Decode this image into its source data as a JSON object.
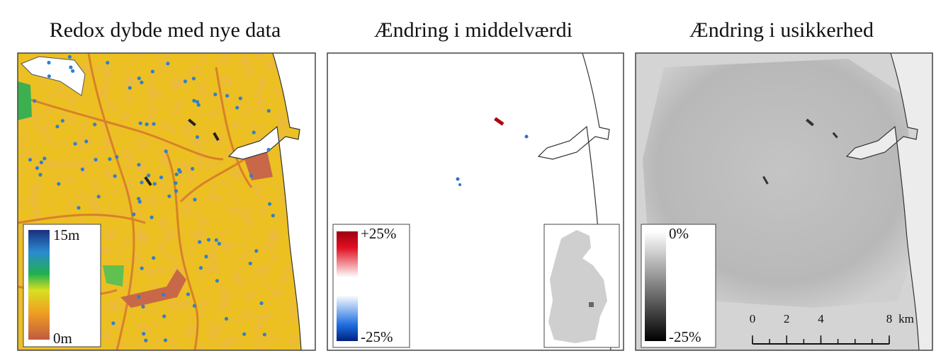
{
  "panels": [
    {
      "title": "Redox dybde med nye data",
      "legend": {
        "max": "15m",
        "min": "0m"
      }
    },
    {
      "title": "Ændring i middelværdi",
      "legend": {
        "max": "+25%",
        "min": "-25%"
      }
    },
    {
      "title": "Ændring i usikkerhed",
      "legend": {
        "max": "0%",
        "min": "-25%"
      }
    }
  ],
  "scale_bar": {
    "ticks": [
      0,
      2,
      4,
      8
    ],
    "unit": "km"
  }
}
